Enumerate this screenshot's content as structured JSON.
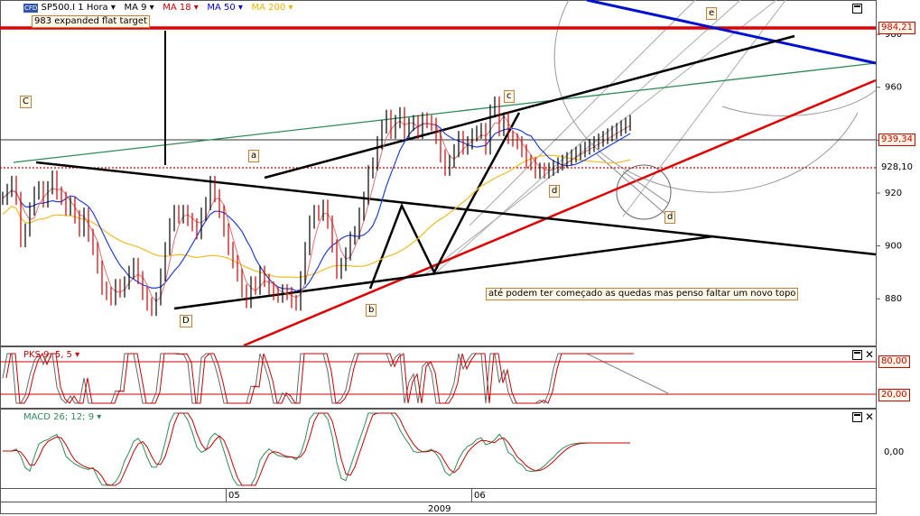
{
  "header": {
    "logo": "CFD",
    "symbol": "SP500.I 1 Hora",
    "ma9": "MA 9",
    "ma18": "MA 18",
    "ma50": "MA 50",
    "ma200": "MA 200",
    "colors": {
      "ma9": "#000000",
      "ma18": "#cc0000",
      "ma50": "#0000cc",
      "ma200": "#e8b000"
    }
  },
  "annotations": {
    "target": "983 expanded flat target",
    "wave_C": "C",
    "wave_a": "a",
    "wave_b": "b",
    "wave_c": "c",
    "wave_d1": "d",
    "wave_d2": "d",
    "wave_e": "e",
    "wave_D": "D",
    "comment": "até podem ter começado as quedas mas penso faltar um novo topo"
  },
  "price_labels": {
    "top": "984,21",
    "mid": "939,34",
    "low": "928,10"
  },
  "osc_labels": {
    "pks_title": "PKS 9, 5, 5",
    "pks_hi": "80,00",
    "pks_lo": "20,00",
    "macd_title": "MACD 26; 12; 9",
    "macd_zero": "0,00"
  },
  "x_labels": {
    "may": "05",
    "jun": "06",
    "year": "2009"
  },
  "chart_data": {
    "type": "line",
    "title": "SP500.I 1 Hora",
    "y_ticks": [
      880,
      900,
      920,
      940,
      960,
      980
    ],
    "ylim": [
      862,
      993
    ],
    "levels": {
      "resistance": 984.21,
      "current": 939.34,
      "dotted": 928.1
    },
    "series": [
      {
        "name": "SP500.I 1 Hora",
        "x": [
          0,
          5,
          10,
          15,
          20,
          25,
          30,
          35,
          40,
          45,
          50,
          55,
          60,
          65,
          70,
          75,
          80,
          85,
          90,
          95,
          100,
          105,
          110,
          115,
          120,
          125,
          130,
          135,
          140,
          145,
          150,
          155,
          160,
          165,
          170,
          175,
          180,
          185,
          190,
          195,
          200,
          205,
          210,
          215,
          220,
          225,
          230,
          235,
          240,
          245,
          250,
          255,
          260,
          265,
          270,
          275,
          280,
          285,
          290,
          295,
          300,
          305,
          310,
          315,
          320,
          325,
          330,
          335,
          340,
          345,
          350,
          355,
          360,
          365,
          370,
          375,
          380,
          385,
          390,
          395,
          400,
          405,
          410,
          415,
          420,
          425,
          430,
          435,
          440,
          445,
          450,
          455,
          460,
          465,
          470,
          475,
          480,
          485,
          490,
          495,
          500,
          505,
          510,
          515,
          520,
          525,
          530,
          535,
          540,
          545,
          550,
          555,
          560,
          565,
          570,
          575,
          580,
          585,
          590,
          595,
          600,
          605,
          610,
          615,
          620,
          625,
          630,
          635,
          640,
          645,
          650,
          655,
          660,
          665,
          670,
          675,
          680,
          685,
          690,
          695
        ],
        "y": [
          918,
          921,
          924,
          918,
          902,
          906,
          914,
          920,
          922,
          917,
          922,
          926,
          920,
          918,
          914,
          916,
          911,
          906,
          912,
          904,
          899,
          892,
          884,
          882,
          880,
          885,
          883,
          886,
          890,
          893,
          888,
          882,
          878,
          876,
          880,
          889,
          899,
          908,
          913,
          911,
          913,
          910,
          908,
          905,
          912,
          916,
          924,
          919,
          913,
          906,
          899,
          894,
          889,
          883,
          879,
          886,
          884,
          890,
          887,
          884,
          882,
          881,
          883,
          882,
          879,
          878,
          888,
          899,
          909,
          913,
          912,
          915,
          909,
          900,
          890,
          893,
          897,
          903,
          905,
          912,
          918,
          928,
          931,
          939,
          945,
          949,
          943,
          947,
          950,
          943,
          946,
          947,
          943,
          948,
          947,
          946,
          941,
          934,
          929,
          932,
          936,
          941,
          937,
          939,
          942,
          943,
          944,
          937,
          951,
          954,
          944,
          948,
          941,
          940,
          939,
          936,
          932,
          931,
          928,
          929,
          928,
          929,
          930,
          931,
          932,
          933,
          934,
          935,
          936,
          937,
          938,
          939,
          940,
          941,
          942,
          943,
          944,
          945,
          946,
          947
        ]
      }
    ],
    "indicators": [
      "MA 9",
      "MA 18",
      "MA 50",
      "MA 200"
    ],
    "grid": false,
    "legend": "top-left"
  }
}
